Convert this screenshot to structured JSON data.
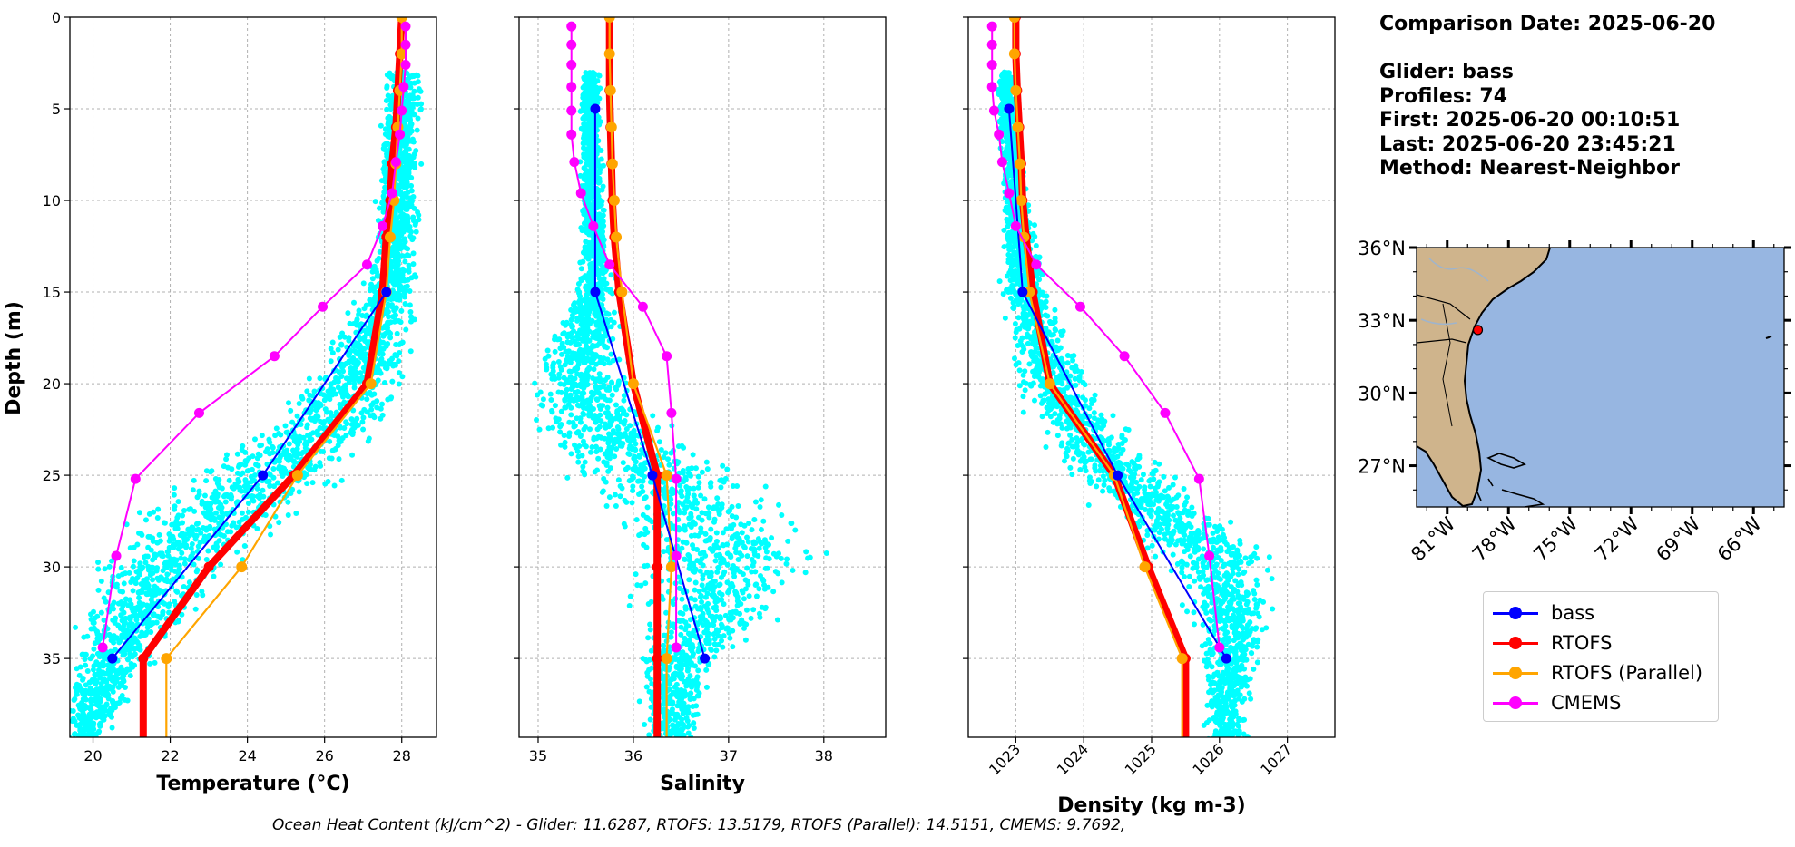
{
  "info": {
    "comparison_date": "Comparison Date: 2025-06-20",
    "glider": "Glider: bass",
    "profiles": "Profiles: 74",
    "first": "First: 2025-06-20 00:10:51",
    "last": "Last: 2025-06-20 23:45:21",
    "method": "Method: Nearest-Neighbor"
  },
  "footer": "Ocean Heat Content (kJ/cm^2) - Glider: 11.6287,  RTOFS: 13.5179,  RTOFS (Parallel): 14.5151,  CMEMS: 9.7692,",
  "colors": {
    "bass": "#0000ff",
    "rtofs": "#ff0000",
    "rtofs_parallel": "#ffa500",
    "cmems": "#ff00ff",
    "glider_points": "#00ffff",
    "ocean": "#97b6e1",
    "land": "#cfb48c"
  },
  "legend": [
    {
      "key": "bass",
      "label": "bass",
      "color": "#0000ff"
    },
    {
      "key": "rtofs",
      "label": "RTOFS",
      "color": "#ff0000"
    },
    {
      "key": "rtofs_parallel",
      "label": "RTOFS (Parallel)",
      "color": "#ffa500"
    },
    {
      "key": "cmems",
      "label": "CMEMS",
      "color": "#ff00ff"
    }
  ],
  "chart_data": [
    {
      "type": "line",
      "xlabel": "Temperature (°C)",
      "ylabel": "Depth (m)",
      "xlim": [
        19.4,
        28.9
      ],
      "ylim": [
        39.3,
        0
      ],
      "xticks": [
        20,
        22,
        24,
        26,
        28
      ],
      "yticks": [
        0,
        5,
        10,
        15,
        20,
        25,
        30,
        35
      ],
      "grid": true,
      "scatter": {
        "name": "bass",
        "bands": [
          [
            3,
            28.05,
            0.4
          ],
          [
            8,
            27.95,
            0.45
          ],
          [
            12,
            27.85,
            0.5
          ],
          [
            15,
            27.6,
            0.6
          ],
          [
            18,
            27.2,
            0.9
          ],
          [
            21,
            26.5,
            1.2
          ],
          [
            24,
            25.1,
            1.5
          ],
          [
            27,
            23.3,
            1.8
          ],
          [
            30,
            21.8,
            1.6
          ],
          [
            33,
            21.0,
            1.2
          ],
          [
            36,
            20.3,
            0.8
          ],
          [
            39,
            19.9,
            0.5
          ]
        ]
      },
      "series": [
        {
          "name": "bass",
          "depth": [
            15,
            25,
            35
          ],
          "values": [
            27.6,
            24.4,
            20.5
          ]
        },
        {
          "name": "RTOFS",
          "depth": [
            0,
            2,
            4,
            6,
            8,
            10,
            12,
            15,
            20,
            25,
            30,
            35,
            39.3
          ],
          "values": [
            28.0,
            27.95,
            27.9,
            27.85,
            27.75,
            27.7,
            27.6,
            27.5,
            27.1,
            25.2,
            23.0,
            21.3,
            21.3
          ]
        },
        {
          "name": "RTOFS (Parallel)",
          "depth": [
            0,
            2,
            4,
            6,
            8,
            10,
            12,
            15,
            20,
            25,
            30,
            35,
            39.3
          ],
          "values": [
            28.0,
            28.0,
            27.95,
            27.9,
            27.85,
            27.8,
            27.7,
            27.6,
            27.2,
            25.3,
            23.85,
            21.9,
            21.9
          ]
        },
        {
          "name": "CMEMS",
          "depth": [
            0.5,
            1.5,
            2.6,
            3.8,
            5.1,
            6.4,
            7.9,
            9.6,
            11.4,
            13.5,
            15.8,
            18.5,
            21.6,
            25.2,
            29.4,
            34.4
          ],
          "values": [
            28.1,
            28.1,
            28.1,
            28.05,
            28.0,
            27.95,
            27.85,
            27.75,
            27.5,
            27.1,
            25.95,
            24.7,
            22.75,
            21.1,
            20.6,
            20.25
          ]
        }
      ]
    },
    {
      "type": "line",
      "xlabel": "Salinity",
      "ylabel": "",
      "xlim": [
        34.8,
        38.65
      ],
      "ylim": [
        39.3,
        0
      ],
      "xticks": [
        35,
        36,
        37,
        38
      ],
      "yticks": [
        0,
        5,
        10,
        15,
        20,
        25,
        30,
        35
      ],
      "grid": true,
      "scatter": {
        "name": "bass",
        "bands": [
          [
            3.5,
            35.55,
            0.08
          ],
          [
            8,
            35.55,
            0.1
          ],
          [
            12,
            35.6,
            0.12
          ],
          [
            15,
            35.6,
            0.18
          ],
          [
            17,
            35.55,
            0.3
          ],
          [
            19,
            35.45,
            0.4
          ],
          [
            21,
            35.5,
            0.5
          ],
          [
            23,
            35.8,
            0.6
          ],
          [
            25,
            36.3,
            0.8
          ],
          [
            27,
            36.6,
            0.8
          ],
          [
            29,
            36.9,
            0.9
          ],
          [
            31,
            36.9,
            0.8
          ],
          [
            33,
            36.8,
            0.6
          ],
          [
            35,
            36.5,
            0.4
          ],
          [
            37,
            36.4,
            0.3
          ],
          [
            39,
            36.4,
            0.25
          ]
        ]
      },
      "series": [
        {
          "name": "bass",
          "depth": [
            5,
            15,
            25,
            35
          ],
          "values": [
            35.6,
            35.6,
            36.2,
            36.75
          ]
        },
        {
          "name": "RTOFS",
          "depth": [
            0,
            2,
            4,
            6,
            8,
            10,
            12,
            15,
            20,
            25,
            30,
            35,
            39.3
          ],
          "values": [
            35.75,
            35.75,
            35.75,
            35.76,
            35.77,
            35.78,
            35.8,
            35.85,
            36.0,
            36.25,
            36.25,
            36.25,
            36.25
          ]
        },
        {
          "name": "RTOFS (Parallel)",
          "depth": [
            0,
            2,
            4,
            6,
            8,
            10,
            12,
            15,
            20,
            25,
            30,
            35,
            39.3
          ],
          "values": [
            35.75,
            35.75,
            35.76,
            35.77,
            35.78,
            35.8,
            35.82,
            35.88,
            36.0,
            36.35,
            36.4,
            36.35,
            36.35
          ]
        },
        {
          "name": "CMEMS",
          "depth": [
            0.5,
            1.5,
            2.6,
            3.8,
            5.1,
            6.4,
            7.9,
            9.6,
            11.4,
            13.5,
            15.8,
            18.5,
            21.6,
            25.2,
            29.4,
            34.4
          ],
          "values": [
            35.35,
            35.35,
            35.35,
            35.35,
            35.35,
            35.35,
            35.38,
            35.45,
            35.58,
            35.75,
            36.1,
            36.35,
            36.4,
            36.45,
            36.45,
            36.45
          ]
        }
      ]
    },
    {
      "type": "line",
      "xlabel": "Density (kg m-3)",
      "ylabel": "",
      "xlim": [
        1022.3,
        1027.7
      ],
      "ylim": [
        39.3,
        0
      ],
      "xticks": [
        1023,
        1024,
        1025,
        1026,
        1027
      ],
      "yticks": [
        0,
        5,
        10,
        15,
        20,
        25,
        30,
        35
      ],
      "grid": true,
      "scatter": {
        "name": "bass",
        "bands": [
          [
            3.5,
            1022.85,
            0.1
          ],
          [
            8,
            1022.95,
            0.15
          ],
          [
            12,
            1023.05,
            0.2
          ],
          [
            15,
            1023.15,
            0.3
          ],
          [
            18,
            1023.35,
            0.4
          ],
          [
            21,
            1023.7,
            0.5
          ],
          [
            24,
            1024.3,
            0.6
          ],
          [
            27,
            1025.1,
            0.7
          ],
          [
            29,
            1025.8,
            0.8
          ],
          [
            31,
            1026.1,
            0.6
          ],
          [
            33,
            1026.2,
            0.5
          ],
          [
            35,
            1026.2,
            0.4
          ],
          [
            37,
            1026.1,
            0.3
          ],
          [
            39,
            1026.1,
            0.25
          ]
        ]
      },
      "series": [
        {
          "name": "bass",
          "depth": [
            5,
            15,
            25,
            35
          ],
          "values": [
            1022.9,
            1023.1,
            1024.5,
            1026.1
          ]
        },
        {
          "name": "RTOFS",
          "depth": [
            0,
            2,
            4,
            6,
            8,
            10,
            12,
            15,
            20,
            25,
            30,
            35,
            39.3
          ],
          "values": [
            1023.0,
            1023.0,
            1023.02,
            1023.05,
            1023.08,
            1023.1,
            1023.15,
            1023.25,
            1023.5,
            1024.45,
            1024.95,
            1025.5,
            1025.5
          ]
        },
        {
          "name": "RTOFS (Parallel)",
          "depth": [
            0,
            2,
            4,
            6,
            8,
            10,
            12,
            15,
            20,
            25,
            30,
            35,
            39.3
          ],
          "values": [
            1022.98,
            1022.98,
            1023.0,
            1023.03,
            1023.06,
            1023.08,
            1023.12,
            1023.2,
            1023.5,
            1024.45,
            1024.9,
            1025.45,
            1025.45
          ]
        },
        {
          "name": "CMEMS",
          "depth": [
            0.5,
            1.5,
            2.6,
            3.8,
            5.1,
            6.4,
            7.9,
            9.6,
            11.4,
            13.5,
            15.8,
            18.5,
            21.6,
            25.2,
            29.4,
            34.4
          ],
          "values": [
            1022.65,
            1022.65,
            1022.65,
            1022.65,
            1022.68,
            1022.75,
            1022.8,
            1022.9,
            1023.0,
            1023.3,
            1023.95,
            1024.6,
            1025.2,
            1025.7,
            1025.85,
            1026.0
          ]
        }
      ]
    }
  ],
  "map": {
    "lon_range": [
      -82.5,
      -64.5
    ],
    "lat_range": [
      25.3,
      36.0
    ],
    "lon_ticks": [
      "81°W",
      "78°W",
      "75°W",
      "72°W",
      "69°W",
      "66°W"
    ],
    "lat_ticks": [
      "36°N",
      "33°N",
      "30°N",
      "27°N"
    ],
    "glider_position": {
      "lon": -79.5,
      "lat": 32.6
    }
  }
}
